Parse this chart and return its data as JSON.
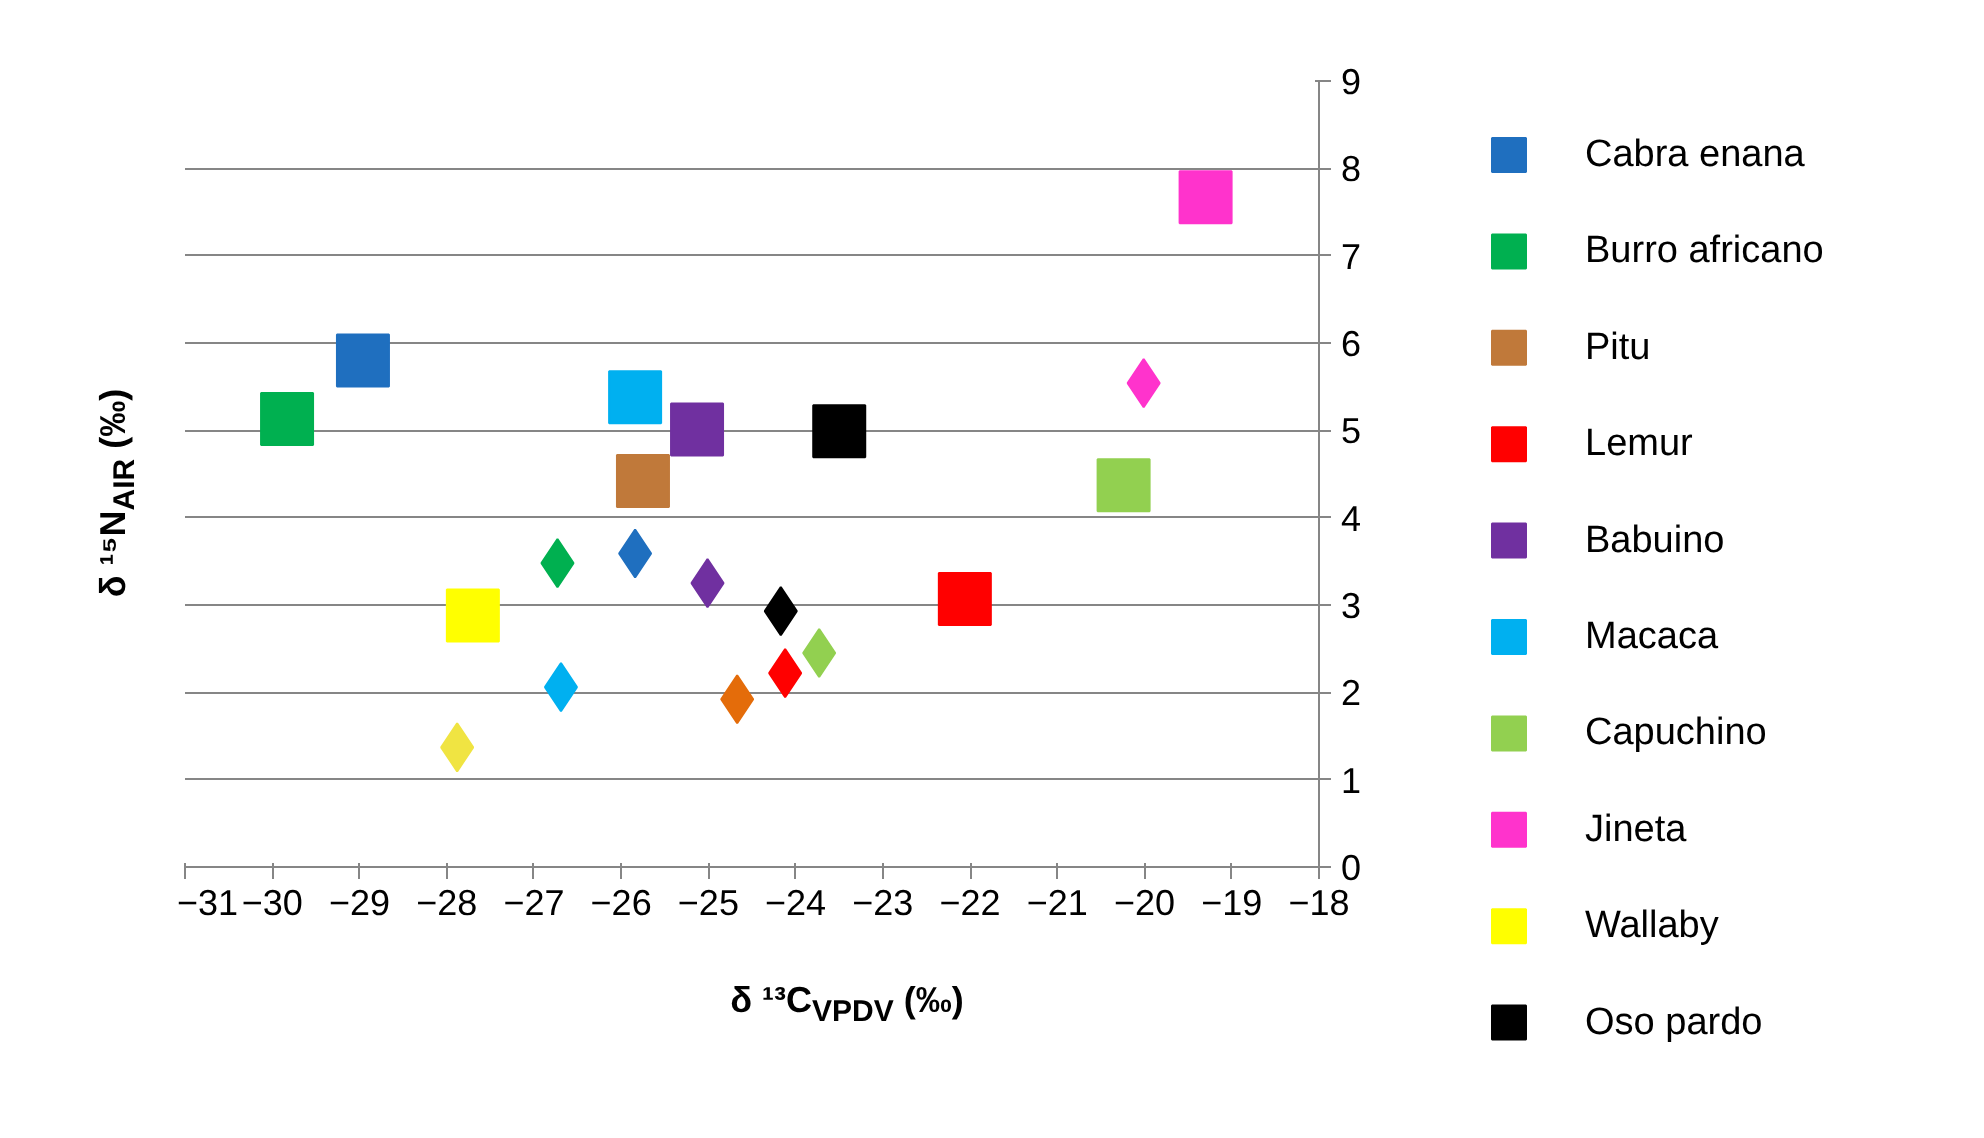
{
  "chart_data": {
    "type": "scatter",
    "xlabel": "δ ¹³C$_{VPDV}$ (‰)",
    "ylabel": "δ ¹⁵N$_{AIR}$ (‰)",
    "xlim": [
      -31,
      -18
    ],
    "xticks": [
      -31,
      -30,
      -29,
      -28,
      -27,
      -26,
      -25,
      -24,
      -23,
      -22,
      -21,
      -20,
      -19,
      -18
    ],
    "ylim": [
      0,
      9
    ],
    "yticks": [
      0,
      1,
      2,
      3,
      4,
      5,
      6,
      7,
      8,
      9
    ],
    "grid": "y",
    "legend": "right",
    "series": [
      {
        "name": "Cabra enana",
        "color": "#1f6fbf",
        "marker": "square",
        "x": [
          -28.96
        ],
        "values": [
          5.8
        ]
      },
      {
        "name": "Burro africano",
        "color": "#00b050",
        "marker": "square",
        "x": [
          -29.83
        ],
        "values": [
          5.13
        ]
      },
      {
        "name": "Pitu",
        "color": "#c0793a",
        "marker": "square",
        "x": [
          -25.75
        ],
        "values": [
          4.42
        ]
      },
      {
        "name": "Lemur",
        "color": "#ff0000",
        "marker": "square",
        "x": [
          -22.06
        ],
        "values": [
          3.07
        ]
      },
      {
        "name": "Babuino",
        "color": "#7030a0",
        "marker": "square",
        "x": [
          -25.13
        ],
        "values": [
          5.01
        ]
      },
      {
        "name": "Macaca",
        "color": "#00b0f0",
        "marker": "square",
        "x": [
          -25.84
        ],
        "values": [
          5.38
        ]
      },
      {
        "name": "Capuchino",
        "color": "#92d050",
        "marker": "square",
        "x": [
          -20.24
        ],
        "values": [
          4.37
        ]
      },
      {
        "name": "Jineta",
        "color": "#ff33cc",
        "marker": "square",
        "x": [
          -19.3
        ],
        "values": [
          7.67
        ]
      },
      {
        "name": "Wallaby",
        "color": "#ffff00",
        "marker": "square",
        "x": [
          -27.7
        ],
        "values": [
          2.88
        ]
      },
      {
        "name": "Oso pardo",
        "color": "#000000",
        "marker": "square",
        "x": [
          -23.5
        ],
        "values": [
          4.99
        ]
      },
      {
        "color": "#1f6fbf",
        "marker": "diamond",
        "x": [
          -25.84
        ],
        "values": [
          3.59
        ]
      },
      {
        "color": "#00b050",
        "marker": "diamond",
        "x": [
          -26.73
        ],
        "values": [
          3.48
        ]
      },
      {
        "color": "#e46c0a",
        "marker": "diamond",
        "x": [
          -24.67
        ],
        "values": [
          1.92
        ]
      },
      {
        "color": "#ff0000",
        "marker": "diamond",
        "x": [
          -24.12
        ],
        "values": [
          2.22
        ]
      },
      {
        "color": "#7030a0",
        "marker": "diamond",
        "x": [
          -25.01
        ],
        "values": [
          3.25
        ]
      },
      {
        "color": "#00b0f0",
        "marker": "diamond",
        "x": [
          -26.69
        ],
        "values": [
          2.06
        ]
      },
      {
        "color": "#92d050",
        "marker": "diamond",
        "x": [
          -23.73
        ],
        "values": [
          2.45
        ]
      },
      {
        "color": "#ff33cc",
        "marker": "diamond",
        "x": [
          -20.01
        ],
        "values": [
          5.54
        ]
      },
      {
        "color": "#f0e442",
        "marker": "diamond",
        "x": [
          -27.88
        ],
        "values": [
          1.37
        ]
      },
      {
        "color": "#000000",
        "marker": "diamond",
        "x": [
          -24.17
        ],
        "values": [
          2.93
        ]
      }
    ]
  }
}
